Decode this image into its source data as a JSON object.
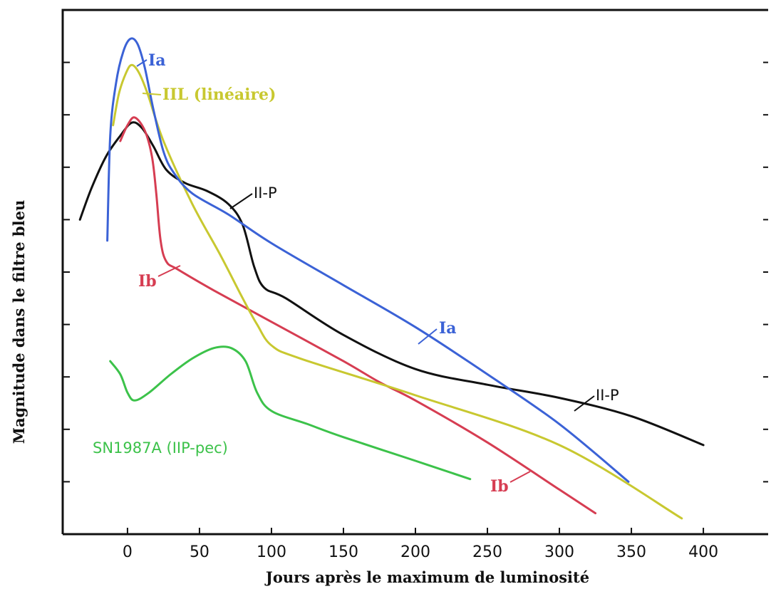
{
  "chart_data": {
    "type": "line",
    "title": "",
    "xlabel": "Jours après le maximum de luminosité",
    "ylabel": "Magnitude dans le filtre bleu",
    "xlim": [
      -45,
      445
    ],
    "ylim": [
      0,
      10
    ],
    "x_ticks": [
      0,
      50,
      100,
      150,
      200,
      250,
      300,
      350,
      400
    ],
    "y_ticks": [
      1,
      2,
      3,
      4,
      5,
      6,
      7,
      8,
      9
    ],
    "grid": false,
    "series": [
      {
        "name": "Ia",
        "color": "#3b62d6",
        "points": [
          [
            -14,
            5.6
          ],
          [
            -12,
            7.6
          ],
          [
            -8,
            8.6
          ],
          [
            -3,
            9.2
          ],
          [
            2,
            9.45
          ],
          [
            7,
            9.35
          ],
          [
            12,
            8.9
          ],
          [
            18,
            8.1
          ],
          [
            25,
            7.3
          ],
          [
            32,
            6.9
          ],
          [
            45,
            6.5
          ],
          [
            70,
            6.1
          ],
          [
            100,
            5.55
          ],
          [
            150,
            4.75
          ],
          [
            200,
            3.95
          ],
          [
            250,
            3.05
          ],
          [
            300,
            2.1
          ],
          [
            348,
            1.0
          ]
        ]
      },
      {
        "name": "IIL (linéaire)",
        "color": "#c8c830",
        "points": [
          [
            -10,
            7.8
          ],
          [
            -6,
            8.4
          ],
          [
            -1,
            8.8
          ],
          [
            3,
            8.95
          ],
          [
            8,
            8.8
          ],
          [
            14,
            8.4
          ],
          [
            25,
            7.5
          ],
          [
            45,
            6.3
          ],
          [
            65,
            5.3
          ],
          [
            80,
            4.5
          ],
          [
            90,
            4.0
          ],
          [
            100,
            3.6
          ],
          [
            120,
            3.35
          ],
          [
            200,
            2.65
          ],
          [
            300,
            1.7
          ],
          [
            385,
            0.3
          ]
        ]
      },
      {
        "name": "II-P",
        "color": "#111111",
        "points": [
          [
            -33,
            6.0
          ],
          [
            -25,
            6.6
          ],
          [
            -15,
            7.2
          ],
          [
            -5,
            7.6
          ],
          [
            3,
            7.85
          ],
          [
            10,
            7.75
          ],
          [
            18,
            7.4
          ],
          [
            27,
            6.95
          ],
          [
            40,
            6.7
          ],
          [
            55,
            6.55
          ],
          [
            70,
            6.3
          ],
          [
            80,
            5.9
          ],
          [
            88,
            5.1
          ],
          [
            95,
            4.7
          ],
          [
            110,
            4.5
          ],
          [
            150,
            3.8
          ],
          [
            200,
            3.15
          ],
          [
            250,
            2.85
          ],
          [
            300,
            2.6
          ],
          [
            350,
            2.25
          ],
          [
            400,
            1.7
          ]
        ]
      },
      {
        "name": "Ib",
        "color": "#d63d52",
        "points": [
          [
            -5,
            7.5
          ],
          [
            0,
            7.8
          ],
          [
            5,
            7.95
          ],
          [
            12,
            7.7
          ],
          [
            17,
            7.2
          ],
          [
            20,
            6.5
          ],
          [
            23,
            5.6
          ],
          [
            27,
            5.2
          ],
          [
            35,
            5.05
          ],
          [
            60,
            4.65
          ],
          [
            100,
            4.05
          ],
          [
            150,
            3.3
          ],
          [
            175,
            2.9
          ],
          [
            200,
            2.55
          ],
          [
            250,
            1.75
          ],
          [
            300,
            0.85
          ],
          [
            325,
            0.4
          ]
        ]
      },
      {
        "name": "SN1987A (IIP-pec)",
        "color": "#3cc24a",
        "points": [
          [
            -12,
            3.3
          ],
          [
            -5,
            3.05
          ],
          [
            0,
            2.7
          ],
          [
            5,
            2.55
          ],
          [
            15,
            2.7
          ],
          [
            30,
            3.05
          ],
          [
            45,
            3.35
          ],
          [
            60,
            3.55
          ],
          [
            72,
            3.55
          ],
          [
            82,
            3.3
          ],
          [
            90,
            2.7
          ],
          [
            100,
            2.35
          ],
          [
            125,
            2.1
          ],
          [
            150,
            1.85
          ],
          [
            200,
            1.4
          ],
          [
            238,
            1.05
          ]
        ]
      }
    ],
    "annotations": [
      {
        "text": "Ia",
        "series": "Ia"
      },
      {
        "text": "IIL (linéaire)",
        "series": "IIL (linéaire)"
      },
      {
        "text": "II-P",
        "series": "II-P"
      },
      {
        "text": "Ib",
        "series": "Ib"
      },
      {
        "text": "Ia",
        "series": "Ia"
      },
      {
        "text": "II-P",
        "series": "II-P"
      },
      {
        "text": "Ib",
        "series": "Ib"
      },
      {
        "text": "SN1987A (IIP-pec)",
        "series": "SN1987A (IIP-pec)"
      }
    ]
  }
}
